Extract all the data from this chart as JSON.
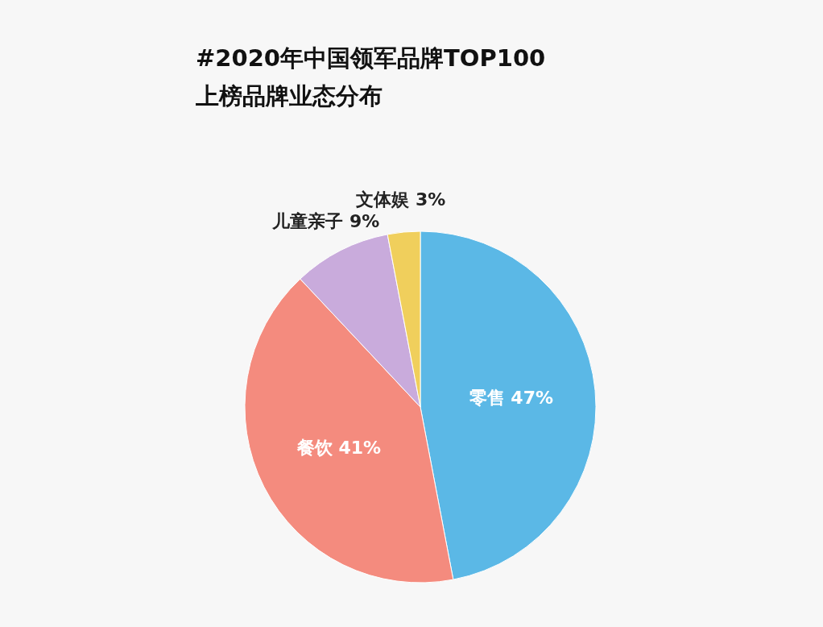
{
  "chart_data": {
    "type": "pie",
    "title": "#2020年中国领军品牌TOP100",
    "subtitle": "上榜品牌业态分布",
    "categories": [
      "零售",
      "餐饮",
      "儿童亲子",
      "文体娱"
    ],
    "values": [
      47,
      41,
      9,
      3
    ],
    "colors": [
      "#5bb8e6",
      "#f48b7e",
      "#c9abdc",
      "#f0cf5c"
    ],
    "value_labels": [
      "47%",
      "41%",
      "9%",
      "3%"
    ]
  }
}
